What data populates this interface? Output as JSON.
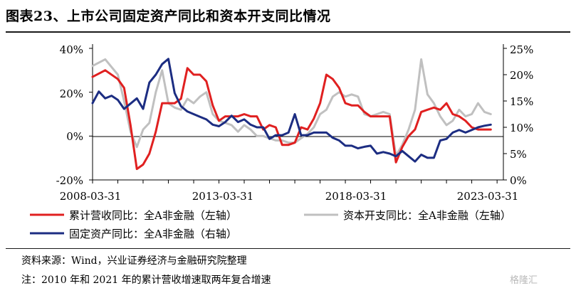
{
  "title": "图表23、上市公司固定资产同比和资本开支同比情况",
  "source_note": "资料来源：Wind，兴业证券经济与金融研究院整理",
  "footnote": "注：2010 年和 2021 年的累计营收增速取两年复合增速",
  "watermark": "格隆汇",
  "chart_data": {
    "type": "line",
    "x_tick_labels": [
      "2008-03-31",
      "2013-03-31",
      "2018-03-31",
      "2023-03-31"
    ],
    "x_range": [
      "2008-03-31",
      "2024-06-30"
    ],
    "y_left": {
      "ticks": [
        "40%",
        "20%",
        "0%",
        "-20%"
      ],
      "range": [
        -20,
        40
      ]
    },
    "y_right": {
      "ticks": [
        "25%",
        "20%",
        "15%",
        "10%",
        "5%",
        "0%"
      ],
      "range": [
        0,
        25
      ]
    },
    "legend_position": "bottom",
    "series": [
      {
        "name": "累计营收同比：全A非金融（左轴）",
        "axis": "left",
        "color": "#e02020",
        "points": [
          [
            "2008-03-31",
            27
          ],
          [
            "2008-09-30",
            30
          ],
          [
            "2009-03-31",
            26
          ],
          [
            "2009-06-30",
            22
          ],
          [
            "2009-09-30",
            5
          ],
          [
            "2009-12-31",
            -15
          ],
          [
            "2010-03-31",
            -13
          ],
          [
            "2010-06-30",
            -8
          ],
          [
            "2010-09-30",
            2
          ],
          [
            "2010-12-31",
            15
          ],
          [
            "2011-03-31",
            15
          ],
          [
            "2011-06-30",
            15
          ],
          [
            "2011-09-30",
            17
          ],
          [
            "2011-12-31",
            31
          ],
          [
            "2012-03-31",
            28
          ],
          [
            "2012-06-30",
            28
          ],
          [
            "2012-09-30",
            25
          ],
          [
            "2012-12-31",
            14
          ],
          [
            "2013-03-31",
            7
          ],
          [
            "2013-06-30",
            9
          ],
          [
            "2013-09-30",
            9
          ],
          [
            "2013-12-31",
            9
          ],
          [
            "2014-03-31",
            10
          ],
          [
            "2014-06-30",
            9
          ],
          [
            "2014-09-30",
            9
          ],
          [
            "2014-12-31",
            3
          ],
          [
            "2015-03-31",
            5
          ],
          [
            "2015-06-30",
            4
          ],
          [
            "2015-09-30",
            -4
          ],
          [
            "2015-12-31",
            -4
          ],
          [
            "2016-03-31",
            -3
          ],
          [
            "2016-06-30",
            4
          ],
          [
            "2016-09-30",
            3
          ],
          [
            "2016-12-31",
            8
          ],
          [
            "2017-03-31",
            15
          ],
          [
            "2017-06-30",
            28
          ],
          [
            "2017-09-30",
            26
          ],
          [
            "2017-12-31",
            22
          ],
          [
            "2018-03-31",
            15
          ],
          [
            "2018-06-30",
            14
          ],
          [
            "2018-09-30",
            14
          ],
          [
            "2018-12-31",
            11
          ],
          [
            "2019-03-31",
            9
          ],
          [
            "2019-06-30",
            9
          ],
          [
            "2019-09-30",
            9
          ],
          [
            "2019-12-31",
            9
          ],
          [
            "2020-03-31",
            -12
          ],
          [
            "2020-06-30",
            -5
          ],
          [
            "2020-09-30",
            0
          ],
          [
            "2020-12-31",
            3
          ],
          [
            "2021-03-31",
            11
          ],
          [
            "2021-06-30",
            12
          ],
          [
            "2021-09-30",
            13
          ],
          [
            "2021-12-31",
            12
          ],
          [
            "2022-03-31",
            15
          ],
          [
            "2022-06-30",
            10
          ],
          [
            "2022-09-30",
            9
          ],
          [
            "2022-12-31",
            7
          ],
          [
            "2023-03-31",
            4
          ],
          [
            "2023-06-30",
            3
          ],
          [
            "2023-09-30",
            3
          ],
          [
            "2023-12-31",
            3
          ]
        ]
      },
      {
        "name": "资本开支同比：全A非金融（左轴）",
        "axis": "left",
        "color": "#c0c0c0",
        "points": [
          [
            "2008-03-31",
            32
          ],
          [
            "2008-09-30",
            35
          ],
          [
            "2009-03-31",
            28
          ],
          [
            "2009-06-30",
            16
          ],
          [
            "2009-09-30",
            2
          ],
          [
            "2009-12-31",
            -5
          ],
          [
            "2010-03-31",
            3
          ],
          [
            "2010-06-30",
            6
          ],
          [
            "2010-09-30",
            20
          ],
          [
            "2010-12-31",
            30
          ],
          [
            "2011-03-31",
            15
          ],
          [
            "2011-06-30",
            13
          ],
          [
            "2011-09-30",
            12
          ],
          [
            "2011-12-31",
            17
          ],
          [
            "2012-03-31",
            15
          ],
          [
            "2012-06-30",
            18
          ],
          [
            "2012-09-30",
            20
          ],
          [
            "2012-12-31",
            10
          ],
          [
            "2013-03-31",
            7
          ],
          [
            "2013-06-30",
            6
          ],
          [
            "2013-09-30",
            5
          ],
          [
            "2013-12-31",
            2
          ],
          [
            "2014-03-31",
            5
          ],
          [
            "2014-06-30",
            3
          ],
          [
            "2014-09-30",
            0
          ],
          [
            "2014-12-31",
            0
          ],
          [
            "2015-03-31",
            -1
          ],
          [
            "2015-06-30",
            -2
          ],
          [
            "2015-09-30",
            -2
          ],
          [
            "2015-12-31",
            -3
          ],
          [
            "2016-03-31",
            -3
          ],
          [
            "2016-06-30",
            -1
          ],
          [
            "2016-09-30",
            1
          ],
          [
            "2016-12-31",
            4
          ],
          [
            "2017-03-31",
            10
          ],
          [
            "2017-06-30",
            12
          ],
          [
            "2017-09-30",
            18
          ],
          [
            "2017-12-31",
            20
          ],
          [
            "2018-03-31",
            18
          ],
          [
            "2018-06-30",
            19
          ],
          [
            "2018-09-30",
            18
          ],
          [
            "2018-12-31",
            10
          ],
          [
            "2019-03-31",
            9
          ],
          [
            "2019-06-30",
            10
          ],
          [
            "2019-09-30",
            11
          ],
          [
            "2019-12-31",
            10
          ],
          [
            "2020-03-31",
            -9
          ],
          [
            "2020-06-30",
            -4
          ],
          [
            "2020-09-30",
            3
          ],
          [
            "2020-12-31",
            12
          ],
          [
            "2021-03-31",
            35
          ],
          [
            "2021-06-30",
            19
          ],
          [
            "2021-09-30",
            15
          ],
          [
            "2021-12-31",
            9
          ],
          [
            "2022-03-31",
            5
          ],
          [
            "2022-06-30",
            7
          ],
          [
            "2022-09-30",
            12
          ],
          [
            "2022-12-31",
            9
          ],
          [
            "2023-03-31",
            10
          ],
          [
            "2023-06-30",
            15
          ],
          [
            "2023-09-30",
            11
          ],
          [
            "2023-12-31",
            10
          ]
        ]
      },
      {
        "name": "固定资产同比：全A非金融（右轴）",
        "axis": "right",
        "color": "#1c2d82",
        "points": [
          [
            "2008-03-31",
            14.6
          ],
          [
            "2008-06-30",
            16.8
          ],
          [
            "2008-09-30",
            15.5
          ],
          [
            "2008-12-31",
            16.0
          ],
          [
            "2009-03-31",
            15.2
          ],
          [
            "2009-06-30",
            13.5
          ],
          [
            "2009-09-30",
            14.5
          ],
          [
            "2009-12-31",
            15.5
          ],
          [
            "2010-03-31",
            13.5
          ],
          [
            "2010-06-30",
            18.5
          ],
          [
            "2010-09-30",
            20.0
          ],
          [
            "2010-12-31",
            22.0
          ],
          [
            "2011-03-31",
            23.0
          ],
          [
            "2011-06-30",
            16.5
          ],
          [
            "2011-09-30",
            14.0
          ],
          [
            "2011-12-31",
            13.0
          ],
          [
            "2012-03-31",
            12.5
          ],
          [
            "2012-06-30",
            12.0
          ],
          [
            "2012-09-30",
            11.5
          ],
          [
            "2012-12-31",
            10.5
          ],
          [
            "2013-03-31",
            10.2
          ],
          [
            "2013-06-30",
            11.0
          ],
          [
            "2013-09-30",
            12.2
          ],
          [
            "2013-12-31",
            11.0
          ],
          [
            "2014-03-31",
            11.5
          ],
          [
            "2014-06-30",
            10.5
          ],
          [
            "2014-09-30",
            10.0
          ],
          [
            "2014-12-31",
            10.0
          ],
          [
            "2015-03-31",
            7.8
          ],
          [
            "2015-06-30",
            8.5
          ],
          [
            "2015-09-30",
            8.5
          ],
          [
            "2015-12-31",
            9.0
          ],
          [
            "2016-03-31",
            12.5
          ],
          [
            "2016-06-30",
            8.5
          ],
          [
            "2016-09-30",
            8.5
          ],
          [
            "2016-12-31",
            9.0
          ],
          [
            "2017-03-31",
            9.0
          ],
          [
            "2017-06-30",
            9.0
          ],
          [
            "2017-09-30",
            8.0
          ],
          [
            "2017-12-31",
            7.5
          ],
          [
            "2018-03-31",
            6.5
          ],
          [
            "2018-06-30",
            6.5
          ],
          [
            "2018-09-30",
            6.0
          ],
          [
            "2018-12-31",
            6.3
          ],
          [
            "2019-03-31",
            6.5
          ],
          [
            "2019-06-30",
            5.0
          ],
          [
            "2019-09-30",
            5.3
          ],
          [
            "2019-12-31",
            5.0
          ],
          [
            "2020-03-31",
            4.5
          ],
          [
            "2020-06-30",
            5.5
          ],
          [
            "2020-09-30",
            4.5
          ],
          [
            "2020-12-31",
            3.5
          ],
          [
            "2021-03-31",
            4.8
          ],
          [
            "2021-06-30",
            4.2
          ],
          [
            "2021-09-30",
            4.2
          ],
          [
            "2021-12-31",
            7.5
          ],
          [
            "2022-03-31",
            7.8
          ],
          [
            "2022-06-30",
            9.0
          ],
          [
            "2022-09-30",
            9.5
          ],
          [
            "2022-12-31",
            9.0
          ],
          [
            "2023-03-31",
            9.5
          ],
          [
            "2023-06-30",
            10.0
          ],
          [
            "2023-09-30",
            10.3
          ],
          [
            "2023-12-31",
            10.5
          ]
        ]
      }
    ]
  }
}
